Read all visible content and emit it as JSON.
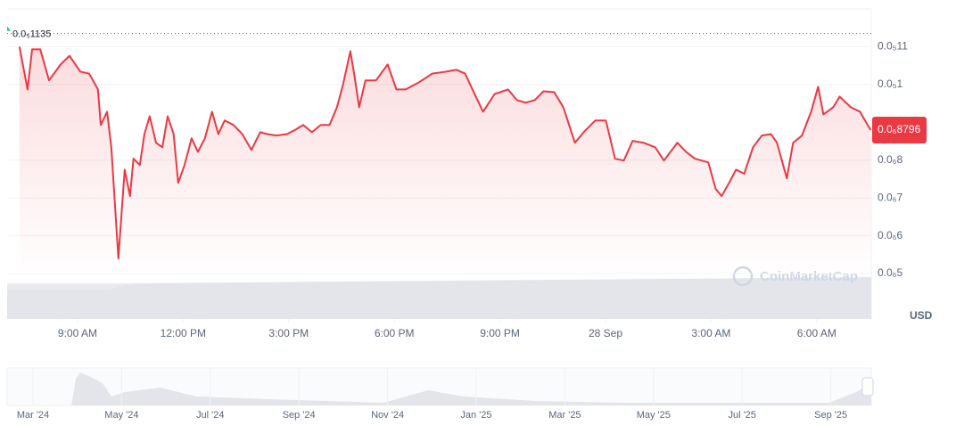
{
  "chart_data": {
    "type": "line",
    "x": [
      7.35,
      7.58,
      7.71,
      7.94,
      8.19,
      8.52,
      8.77,
      9.08,
      9.33,
      9.58,
      9.66,
      9.84,
      9.96,
      10.16,
      10.34,
      10.49,
      10.59,
      10.77,
      10.9,
      11.05,
      11.23,
      11.41,
      11.56,
      11.73,
      11.86,
      12.04,
      12.24,
      12.42,
      12.62,
      12.82,
      13.0,
      13.18,
      13.43,
      13.68,
      13.94,
      14.19,
      14.39,
      14.65,
      14.95,
      15.2,
      15.41,
      15.66,
      15.91,
      16.16,
      16.37,
      16.54,
      16.75,
      16.87,
      17.0,
      17.18,
      17.48,
      17.81,
      18.06,
      18.32,
      18.7,
      19.08,
      19.46,
      19.76,
      20.01,
      20.22,
      20.52,
      20.85,
      21.23,
      21.48,
      21.73,
      21.99,
      22.24,
      22.54,
      22.8,
      23.13,
      23.38,
      23.71,
      24.01,
      24.27,
      24.52,
      24.77,
      25.08,
      25.41,
      25.66,
      26.04,
      26.29,
      26.54,
      26.92,
      27.13,
      27.3,
      27.51,
      27.71,
      27.94,
      28.19,
      28.44,
      28.7,
      28.87,
      29.15,
      29.33,
      29.58,
      29.84,
      30.04,
      30.19,
      30.47,
      30.65,
      30.97,
      31.23,
      31.53
    ],
    "series": [
      {
        "color": "#ea3943",
        "values": [
          1.1e-06,
          9.87e-07,
          1.093e-06,
          1.093e-06,
          1.011e-06,
          1.053e-06,
          1.076e-06,
          1.034e-06,
          1.029e-06,
          9.87e-07,
          8.93e-07,
          9.28e-07,
          8.34e-07,
          5.4e-07,
          7.75e-07,
          7.05e-07,
          8.04e-07,
          7.87e-07,
          8.69e-07,
          9.16e-07,
          8.46e-07,
          8.34e-07,
          9.16e-07,
          8.69e-07,
          7.4e-07,
          7.87e-07,
          8.58e-07,
          8.22e-07,
          8.58e-07,
          9.28e-07,
          8.69e-07,
          9.05e-07,
          8.93e-07,
          8.69e-07,
          8.27e-07,
          8.74e-07,
          8.69e-07,
          8.65e-07,
          8.69e-07,
          8.81e-07,
          8.93e-07,
          8.74e-07,
          8.93e-07,
          8.93e-07,
          9.4e-07,
          9.99e-07,
          1.088e-06,
          1.022e-06,
          9.4e-07,
          1.011e-06,
          1.011e-06,
          1.053e-06,
          9.87e-07,
          9.87e-07,
          1.006e-06,
          1.029e-06,
          1.034e-06,
          1.039e-06,
          1.029e-06,
          9.87e-07,
          9.28e-07,
          9.75e-07,
          9.87e-07,
          9.59e-07,
          9.52e-07,
          9.59e-07,
          9.82e-07,
          9.8e-07,
          9.4e-07,
          8.46e-07,
          8.74e-07,
          9.05e-07,
          9.05e-07,
          8.04e-07,
          7.99e-07,
          8.51e-07,
          8.46e-07,
          8.34e-07,
          7.99e-07,
          8.46e-07,
          8.22e-07,
          8.04e-07,
          7.94e-07,
          7.24e-07,
          7.05e-07,
          7.4e-07,
          7.75e-07,
          7.64e-07,
          8.34e-07,
          8.65e-07,
          8.69e-07,
          8.46e-07,
          7.52e-07,
          8.46e-07,
          8.65e-07,
          9.28e-07,
          9.94e-07,
          9.21e-07,
          9.4e-07,
          9.68e-07,
          9.4e-07,
          9.28e-07,
          8.796e-07
        ]
      }
    ],
    "xlim": [
      7,
      31.55
    ],
    "xticks": [
      {
        "value": 9,
        "label": "9:00 AM"
      },
      {
        "value": 12,
        "label": "12:00 PM"
      },
      {
        "value": 15,
        "label": "3:00 PM"
      },
      {
        "value": 18,
        "label": "6:00 PM"
      },
      {
        "value": 21,
        "label": "9:00 PM"
      },
      {
        "value": 24,
        "label": "28 Sep"
      },
      {
        "value": 27,
        "label": "3:00 AM"
      },
      {
        "value": 30,
        "label": "6:00 AM"
      }
    ],
    "ylim": [
      3.8e-07,
      1.2e-06
    ],
    "yticks": [
      {
        "value": 1.1e-06,
        "label": "0.0₅11"
      },
      {
        "value": 1e-06,
        "label": "0.0₅1"
      },
      {
        "value": 8e-07,
        "label": "0.0₆8"
      },
      {
        "value": 7e-07,
        "label": "0.0₆7"
      },
      {
        "value": 6e-07,
        "label": "0.0₆6"
      },
      {
        "value": 5e-07,
        "label": "0.0₆5"
      }
    ],
    "y_axis_label": "USD",
    "reference_line": {
      "value": 1.135e-06,
      "label": "0.0₅1135"
    },
    "current_price": {
      "value": 8.796e-07,
      "label": "0.0₆8796",
      "color": "#ea3943"
    },
    "watermark": "CoinMarketCap",
    "grid": true,
    "navigator_labels": [
      "Mar '24",
      "May '24",
      "Jul '24",
      "Sep '24",
      "Nov '24",
      "Jan '25",
      "Mar '25",
      "May '25",
      "Jul '25",
      "Sep '25"
    ]
  }
}
